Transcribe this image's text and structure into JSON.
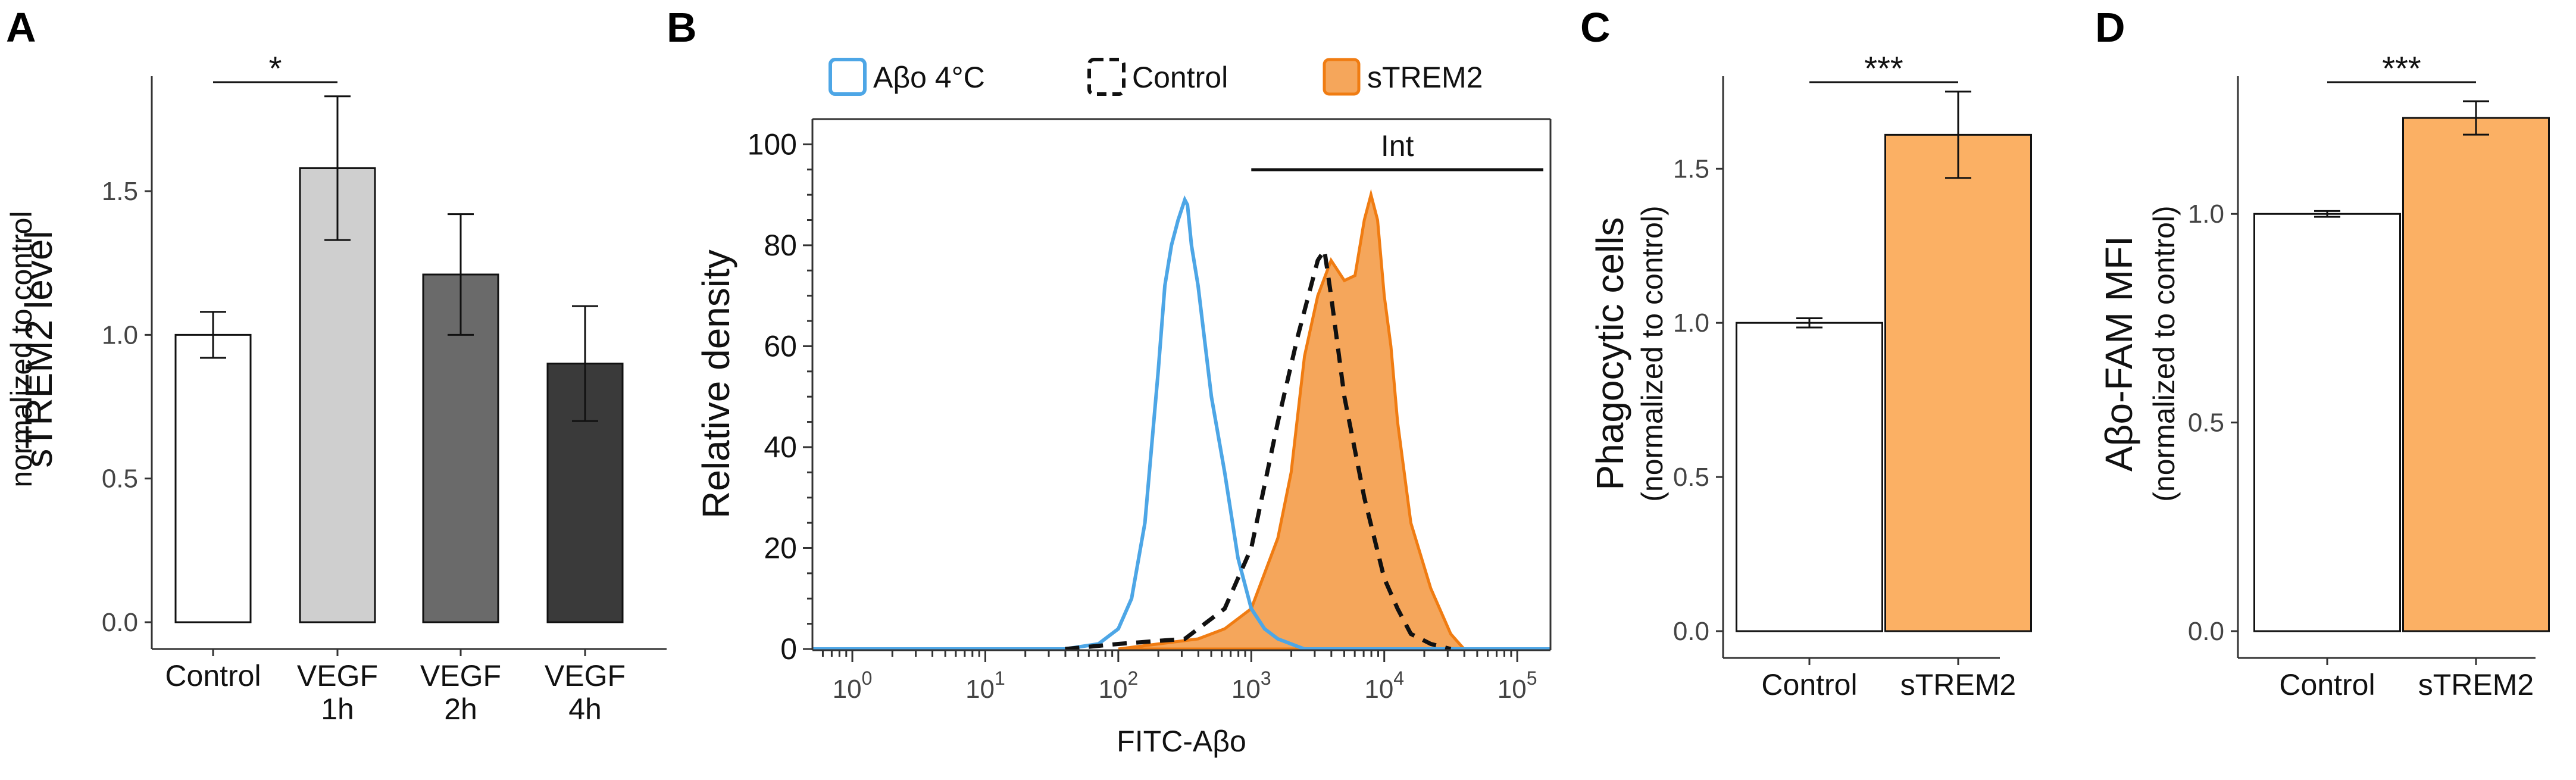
{
  "chart_data": [
    {
      "panel": "A",
      "type": "bar",
      "ylabel": "sTREM2 level",
      "ylabel_sub": "normalized to control",
      "ylim": [
        0,
        1.9
      ],
      "yticks": [
        "0.0",
        "0.5",
        "1.0",
        "1.5"
      ],
      "categories": [
        "Control",
        "VEGF\n1h",
        "VEGF\n2h",
        "VEGF\n4h"
      ],
      "values": [
        1.0,
        1.58,
        1.21,
        0.9
      ],
      "errors": [
        0.08,
        0.25,
        0.21,
        0.2
      ],
      "colors": [
        "#ffffff",
        "#cfcfcf",
        "#6a6a6a",
        "#3a3a3a"
      ],
      "significance": [
        {
          "from": 0,
          "to": 1,
          "label": "*"
        }
      ]
    },
    {
      "panel": "B",
      "type": "line",
      "xlabel": "FITC-Aβo",
      "ylabel": "Relative density",
      "ylim": [
        0,
        105
      ],
      "yticks": [
        "0",
        "20",
        "40",
        "60",
        "80",
        "100"
      ],
      "xlim_log10": [
        -0.3,
        5.25
      ],
      "xticks": [
        {
          "base": "10",
          "exp": "0"
        },
        {
          "base": "10",
          "exp": "1"
        },
        {
          "base": "10",
          "exp": "2"
        },
        {
          "base": "10",
          "exp": "3"
        },
        {
          "base": "10",
          "exp": "4"
        },
        {
          "base": "10",
          "exp": "5"
        }
      ],
      "gate": {
        "label": "Int",
        "from_log10": 3.0,
        "to_log10": 5.25
      },
      "series": [
        {
          "name": "Aβo 4°C",
          "style": "solid",
          "color": "#4da6e6",
          "x_log10": [
            -0.3,
            1.6,
            1.85,
            2.0,
            2.1,
            2.2,
            2.3,
            2.35,
            2.4,
            2.45,
            2.5,
            2.52,
            2.55,
            2.6,
            2.7,
            2.8,
            2.9,
            3.0,
            3.1,
            3.2,
            3.4,
            5.25
          ],
          "y": [
            0,
            0,
            1,
            4,
            10,
            25,
            55,
            72,
            80,
            85,
            89,
            88,
            80,
            72,
            50,
            35,
            18,
            8,
            4,
            2,
            0,
            0
          ]
        },
        {
          "name": "Control",
          "style": "dashed",
          "color": "#111111",
          "x_log10": [
            1.6,
            2.0,
            2.5,
            2.8,
            3.0,
            3.2,
            3.35,
            3.5,
            3.55,
            3.6,
            3.7,
            3.85,
            4.0,
            4.1,
            4.2,
            4.35,
            4.5
          ],
          "y": [
            0,
            1,
            2,
            8,
            20,
            45,
            62,
            77,
            79,
            70,
            50,
            30,
            14,
            8,
            3,
            1,
            0
          ]
        },
        {
          "name": "sTREM2",
          "style": "filled",
          "color": "#f5a65b",
          "stroke": "#f07c12",
          "x_log10": [
            2.0,
            2.6,
            2.8,
            3.0,
            3.2,
            3.3,
            3.4,
            3.5,
            3.6,
            3.7,
            3.78,
            3.85,
            3.9,
            3.95,
            4.0,
            4.05,
            4.1,
            4.2,
            4.35,
            4.5,
            4.6,
            5.0
          ],
          "y": [
            0,
            2,
            4,
            8,
            22,
            35,
            58,
            70,
            77,
            73,
            74,
            85,
            90,
            85,
            70,
            60,
            45,
            25,
            12,
            3,
            0,
            0
          ]
        }
      ]
    },
    {
      "panel": "C",
      "type": "bar",
      "ylabel": "Phagocytic cells",
      "ylabel_sub": "(normalized to control)",
      "ylim": [
        0,
        1.8
      ],
      "yticks": [
        "0.0",
        "0.5",
        "1.0",
        "1.5"
      ],
      "categories": [
        "Control",
        "sTREM2"
      ],
      "values": [
        1.0,
        1.61
      ],
      "errors": [
        0.015,
        0.14
      ],
      "colors": [
        "#ffffff",
        "#fbb064"
      ],
      "significance": [
        {
          "from": 0,
          "to": 1,
          "label": "***"
        }
      ]
    },
    {
      "panel": "D",
      "type": "bar",
      "ylabel": "Aβo-FAM MFI",
      "ylabel_sub": "(normalized to control)",
      "ylim": [
        0,
        1.33
      ],
      "yticks": [
        "0.0",
        "0.5",
        "1.0"
      ],
      "categories": [
        "Control",
        "sTREM2"
      ],
      "values": [
        1.0,
        1.23
      ],
      "errors": [
        0.007,
        0.04
      ],
      "colors": [
        "#ffffff",
        "#fbb064"
      ],
      "significance": [
        {
          "from": 0,
          "to": 1,
          "label": "***"
        }
      ]
    }
  ]
}
